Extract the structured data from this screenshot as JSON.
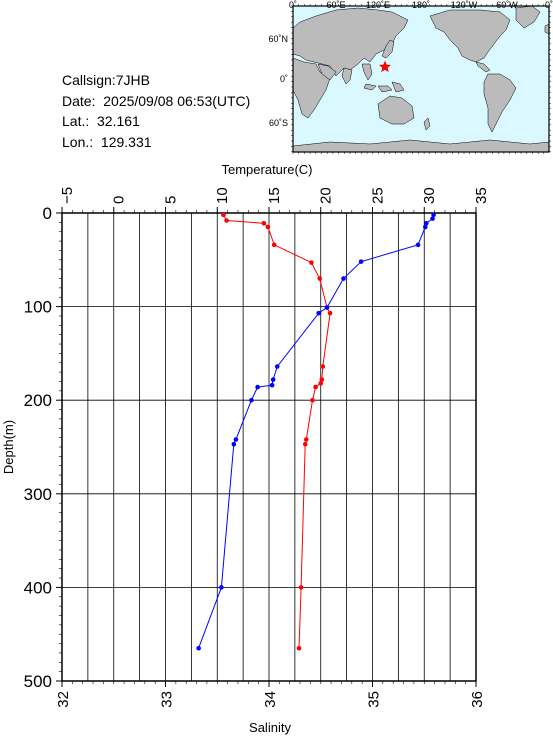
{
  "info": {
    "callsign": "Callsign:7JHB",
    "date": "Date:  2025/09/08 06:53(UTC)",
    "lat": "Lat.:  32.161",
    "lon": "Lon.:  129.331"
  },
  "map": {
    "top_labels": [
      "0˚",
      "60˚E",
      "120˚E",
      "180˚",
      "120˚W",
      "60˚W",
      "0˚"
    ],
    "lat_labels": [
      "60˚N",
      "0˚",
      "60˚S"
    ],
    "ocean_color": "#d9f8ff",
    "land_color": "#bbbbbb",
    "marker_color": "#ff0000",
    "marker_lon": 129.331,
    "marker_lat": 32.161
  },
  "chart_data": {
    "type": "line",
    "ylabel": "Depth(m)",
    "x_top_label": "Temperature(C)",
    "x_bottom_label": "Salinity",
    "depth_range": [
      0,
      500
    ],
    "depth_ticks": [
      "0",
      "100",
      "200",
      "300",
      "400",
      "500"
    ],
    "temperature_range": [
      -5,
      35
    ],
    "temperature_ticks": [
      "−5",
      "0",
      "5",
      "10",
      "15",
      "20",
      "25",
      "30",
      "35"
    ],
    "salinity_range": [
      32,
      36
    ],
    "salinity_ticks": [
      "32",
      "33",
      "34",
      "35",
      "36"
    ],
    "grid": true,
    "series": [
      {
        "name": "Temperature",
        "axis": "temperature",
        "color": "#ff0000",
        "points": [
          {
            "x": 10.6,
            "depth": 2
          },
          {
            "x": 10.9,
            "depth": 8
          },
          {
            "x": 14.5,
            "depth": 11
          },
          {
            "x": 14.9,
            "depth": 15
          },
          {
            "x": 15.5,
            "depth": 34
          },
          {
            "x": 19.1,
            "depth": 53
          },
          {
            "x": 19.9,
            "depth": 70
          },
          {
            "x": 20.6,
            "depth": 101
          },
          {
            "x": 20.9,
            "depth": 107
          },
          {
            "x": 20.2,
            "depth": 164
          },
          {
            "x": 20.1,
            "depth": 178
          },
          {
            "x": 20.0,
            "depth": 182
          },
          {
            "x": 19.5,
            "depth": 186
          },
          {
            "x": 19.2,
            "depth": 200
          },
          {
            "x": 18.6,
            "depth": 242
          },
          {
            "x": 18.5,
            "depth": 247
          },
          {
            "x": 18.1,
            "depth": 400
          },
          {
            "x": 17.9,
            "depth": 465
          }
        ]
      },
      {
        "name": "Salinity",
        "axis": "salinity",
        "color": "#0000ff",
        "points": [
          {
            "x": 35.59,
            "depth": 2
          },
          {
            "x": 35.58,
            "depth": 6
          },
          {
            "x": 35.52,
            "depth": 11
          },
          {
            "x": 35.51,
            "depth": 15
          },
          {
            "x": 35.44,
            "depth": 34
          },
          {
            "x": 34.89,
            "depth": 52
          },
          {
            "x": 34.72,
            "depth": 70
          },
          {
            "x": 34.56,
            "depth": 101
          },
          {
            "x": 34.48,
            "depth": 107
          },
          {
            "x": 34.08,
            "depth": 164
          },
          {
            "x": 34.04,
            "depth": 178
          },
          {
            "x": 34.03,
            "depth": 184
          },
          {
            "x": 33.89,
            "depth": 186
          },
          {
            "x": 33.83,
            "depth": 200
          },
          {
            "x": 33.68,
            "depth": 242
          },
          {
            "x": 33.66,
            "depth": 247
          },
          {
            "x": 33.54,
            "depth": 400
          },
          {
            "x": 33.32,
            "depth": 465
          }
        ]
      }
    ]
  }
}
